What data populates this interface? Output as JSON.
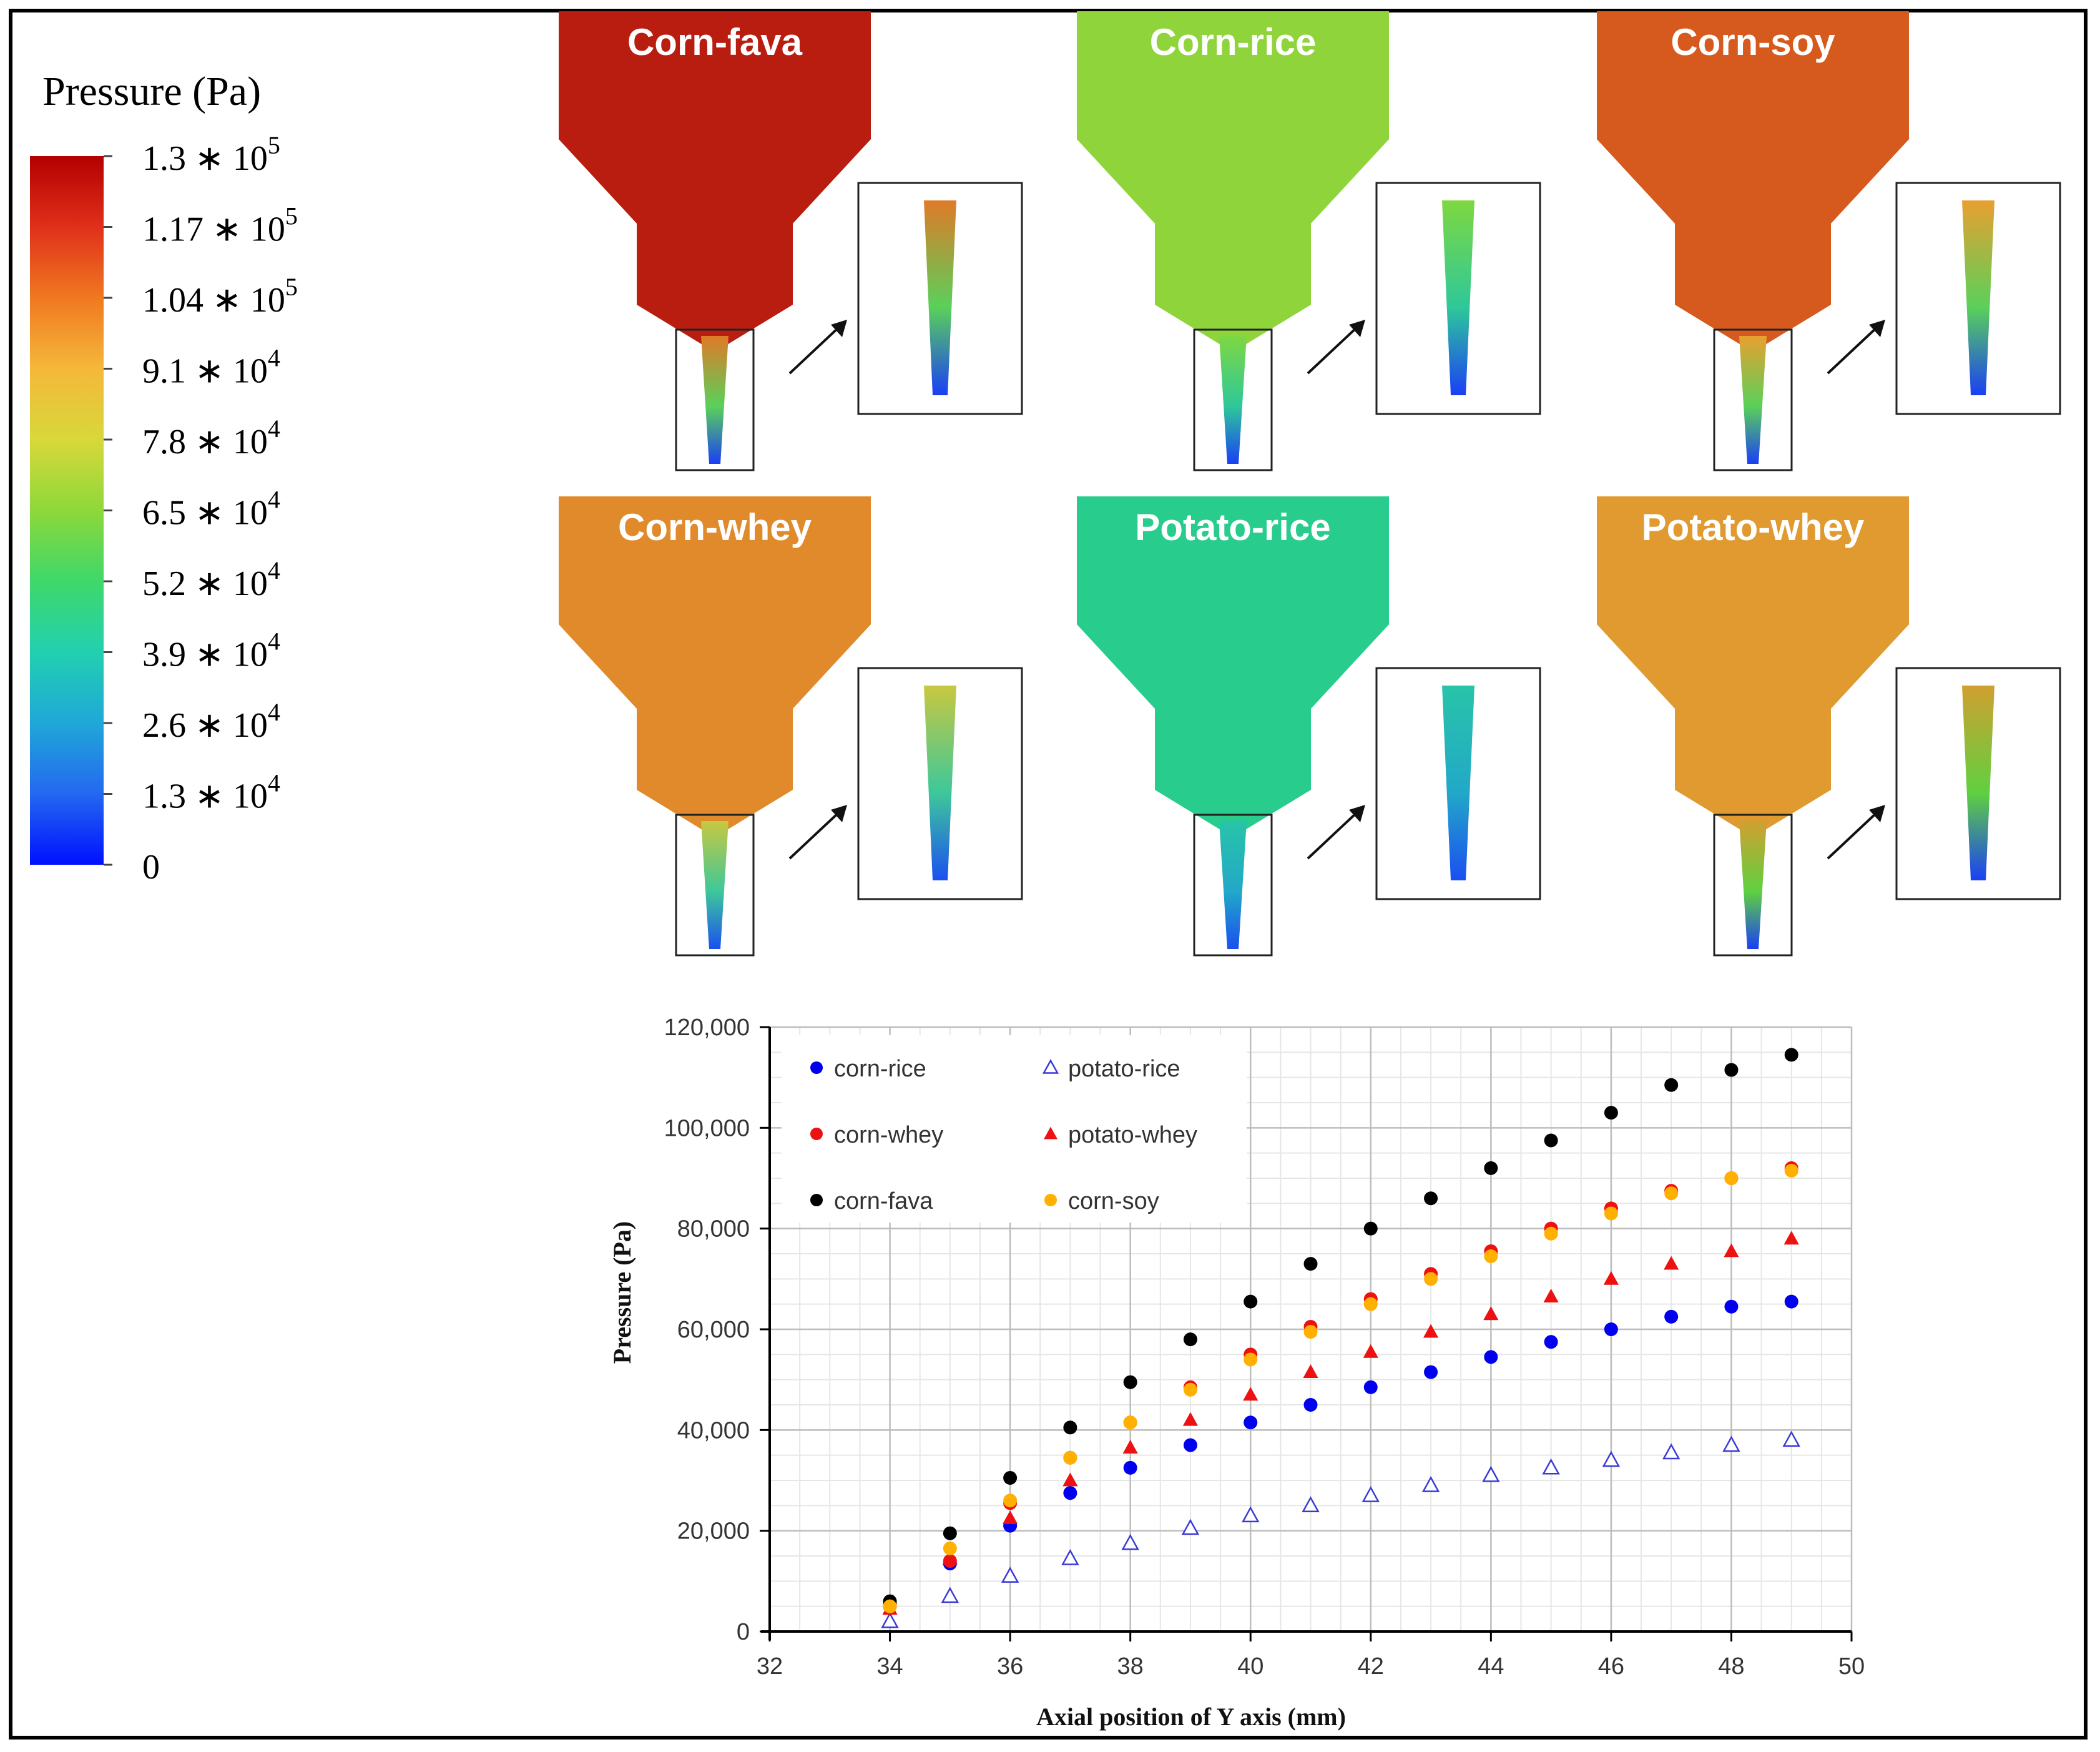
{
  "legend": {
    "title": "Pressure (Pa)",
    "ticks": [
      {
        "mantissa": "1.3 ∗ 10",
        "exp": "5"
      },
      {
        "mantissa": "1.17 ∗ 10",
        "exp": "5"
      },
      {
        "mantissa": "1.04 ∗ 10",
        "exp": "5"
      },
      {
        "mantissa": "9.1 ∗ 10",
        "exp": "4"
      },
      {
        "mantissa": "7.8 ∗ 10",
        "exp": "4"
      },
      {
        "mantissa": "6.5 ∗ 10",
        "exp": "4"
      },
      {
        "mantissa": "5.2 ∗ 10",
        "exp": "4"
      },
      {
        "mantissa": "3.9 ∗ 10",
        "exp": "4"
      },
      {
        "mantissa": "2.6 ∗ 10",
        "exp": "4"
      },
      {
        "mantissa": "1.3 ∗ 10",
        "exp": "4"
      },
      {
        "mantissa": "0",
        "exp": ""
      }
    ],
    "colors": [
      "#b30000",
      "#e0301a",
      "#f07820",
      "#f5b83a",
      "#d8d83a",
      "#8ed83a",
      "#3ed86a",
      "#22d0b0",
      "#1fa8d8",
      "#2468f0",
      "#0010ff"
    ]
  },
  "panels": [
    {
      "label": "Corn-fava",
      "color": "#b81d10",
      "zoom_top": "#e07a28",
      "zoom_mid": "#5ad05a",
      "zoom_bot": "#1a3ff5"
    },
    {
      "label": "Corn-rice",
      "color": "#8fd43a",
      "zoom_top": "#7ed840",
      "zoom_mid": "#2ec89a",
      "zoom_bot": "#1a3ff5"
    },
    {
      "label": "Corn-soy",
      "color": "#d65a1e",
      "zoom_top": "#e8a030",
      "zoom_mid": "#5ad05a",
      "zoom_bot": "#1a3ff5"
    },
    {
      "label": "Corn-whey",
      "color": "#e08a2c",
      "zoom_top": "#c8c840",
      "zoom_mid": "#3ec89a",
      "zoom_bot": "#1a50f0"
    },
    {
      "label": "Potato-rice",
      "color": "#28cc8c",
      "zoom_top": "#28c4a8",
      "zoom_mid": "#22a8c8",
      "zoom_bot": "#1a4ff0"
    },
    {
      "label": "Potato-whey",
      "color": "#e09a30",
      "zoom_top": "#d0a030",
      "zoom_mid": "#60d040",
      "zoom_bot": "#1a3ff5"
    }
  ],
  "chart_data": {
    "type": "scatter",
    "title": "",
    "xlabel": "Axial position of Y axis (mm)",
    "ylabel": "Pressure (Pa)",
    "xlim": [
      32,
      50
    ],
    "ylim": [
      0,
      120000
    ],
    "x_ticks": [
      "32",
      "34",
      "36",
      "38",
      "40",
      "42",
      "44",
      "46",
      "48",
      "50"
    ],
    "y_ticks": [
      "0",
      "20,000",
      "40,000",
      "60,000",
      "80,000",
      "100,000",
      "120,000"
    ],
    "x_tick_values": [
      32,
      34,
      36,
      38,
      40,
      42,
      44,
      46,
      48,
      50
    ],
    "y_tick_values": [
      0,
      20000,
      40000,
      60000,
      80000,
      100000,
      120000
    ],
    "grid": true,
    "legend_position": "top-left",
    "x": [
      34,
      35,
      36,
      37,
      38,
      39,
      40,
      41,
      42,
      43,
      44,
      45,
      46,
      47,
      48,
      49
    ],
    "series": [
      {
        "name": "corn-rice",
        "marker": "circle",
        "color": "#0000ee",
        "values": [
          5000,
          13500,
          21000,
          27500,
          32500,
          37000,
          41500,
          45000,
          48500,
          51500,
          54500,
          57500,
          60000,
          62500,
          64500,
          65500
        ]
      },
      {
        "name": "potato-rice",
        "marker": "triangle-open",
        "color": "#3a3ad8",
        "values": [
          2000,
          7000,
          11000,
          14500,
          17500,
          20500,
          23000,
          25000,
          27000,
          29000,
          31000,
          32500,
          34000,
          35500,
          37000,
          38000
        ]
      },
      {
        "name": "corn-whey",
        "marker": "circle",
        "color": "#ee1111",
        "values": [
          5500,
          14000,
          25500,
          34500,
          41500,
          48500,
          55000,
          60500,
          66000,
          71000,
          75500,
          80000,
          84000,
          87500,
          90000,
          92000
        ]
      },
      {
        "name": "potato-whey",
        "marker": "triangle",
        "color": "#ee1111",
        "values": [
          4500,
          14500,
          22500,
          30000,
          36500,
          42000,
          47000,
          51500,
          55500,
          59500,
          63000,
          66500,
          70000,
          73000,
          75500,
          78000
        ]
      },
      {
        "name": "corn-fava",
        "marker": "circle",
        "color": "#000000",
        "values": [
          6000,
          19500,
          30500,
          40500,
          49500,
          58000,
          65500,
          73000,
          80000,
          86000,
          92000,
          97500,
          103000,
          108500,
          111500,
          114500
        ]
      },
      {
        "name": "corn-soy",
        "marker": "circle",
        "color": "#ffb000",
        "values": [
          5000,
          16500,
          26000,
          34500,
          41500,
          48000,
          54000,
          59500,
          65000,
          70000,
          74500,
          79000,
          83000,
          87000,
          90000,
          91500
        ]
      }
    ]
  }
}
